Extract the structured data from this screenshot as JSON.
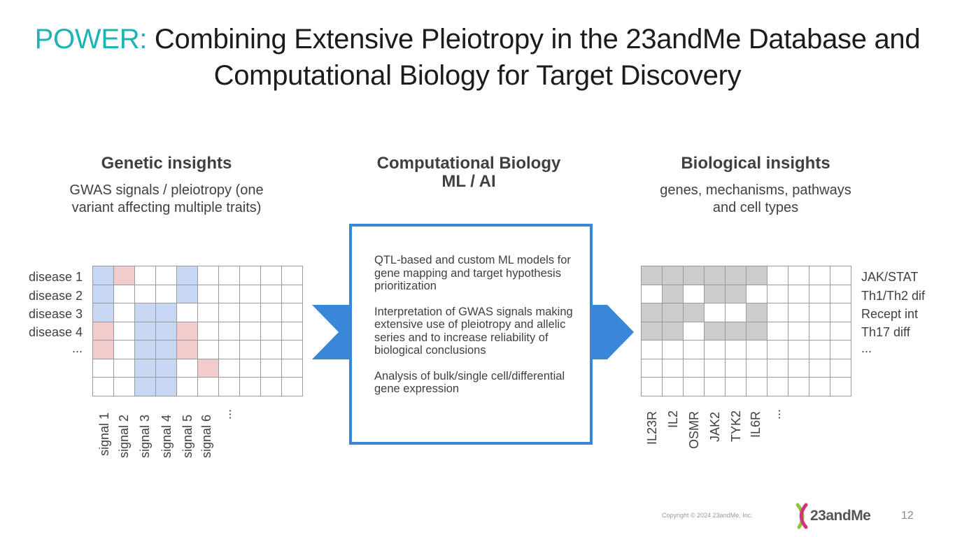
{
  "title": {
    "accent": "POWER:",
    "line1": " Combining Extensive Pleiotropy in the 23andMe Database and",
    "line2": "Computational Biology for Target Discovery"
  },
  "left": {
    "heading": "Genetic insights",
    "sub_line1": "GWAS signals / pleiotropy (one",
    "sub_line2": "variant affecting multiple traits)",
    "row_labels": [
      "disease 1",
      "disease 2",
      "disease 3",
      "disease 4",
      "..."
    ],
    "col_labels": [
      "signal 1",
      "signal 2",
      "signal 3",
      "signal 4",
      "signal 5",
      "signal 6",
      "..."
    ]
  },
  "middle": {
    "heading_line1": "Computational Biology",
    "heading_line2": "ML / AI",
    "para1": "QTL-based and custom ML models for gene mapping and target hypothesis prioritization",
    "para2": "Interpretation of GWAS signals making extensive use of pleiotropy and allelic series and to increase reliability of biological conclusions",
    "para3": "Analysis of bulk/single cell/differential gene expression"
  },
  "right": {
    "heading": "Biological insights",
    "sub_line1": "genes, mechanisms, pathways",
    "sub_line2": "and cell types",
    "row_labels": [
      "JAK/STAT",
      "Th1/Th2 dif",
      "Recept int",
      "Th17 diff",
      "..."
    ],
    "col_labels": [
      "IL23R",
      "IL2",
      "OSMR",
      "JAK2",
      "TYK2",
      "IL6R",
      "..."
    ]
  },
  "colors": {
    "accent": "#1fb3b3",
    "blue_cell": "#c7d6f3",
    "pink_cell": "#f2cccd",
    "gray_cell": "#cccccc",
    "box_border": "#3a86d8",
    "arrow": "#3a86d8"
  },
  "footer": {
    "copyright": "Copyright © 2024 23andMe, Inc.",
    "logo_text": "23andMe",
    "page_number": "12"
  }
}
